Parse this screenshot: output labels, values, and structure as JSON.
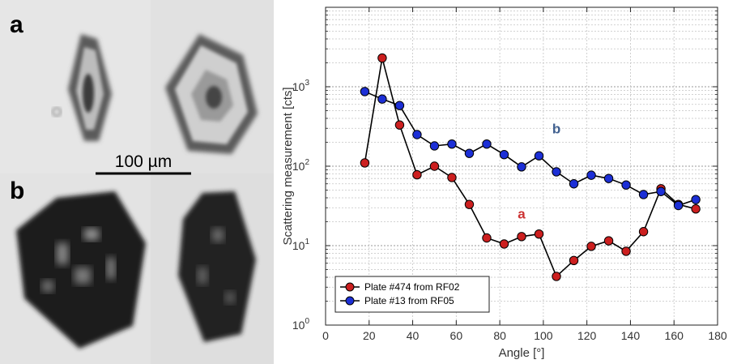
{
  "micrograph": {
    "panel_a_label": "a",
    "panel_b_label": "b",
    "scale_bar_label": "100 µm"
  },
  "chart_data": {
    "type": "line",
    "xlabel": "Angle  [°]",
    "ylabel": "Scattering measurement [cts]",
    "xlim": [
      0,
      180
    ],
    "ylim": [
      1,
      10000
    ],
    "yscale": "log",
    "grid": true,
    "legend_position": "bottom-left",
    "x_ticks": [
      0,
      20,
      40,
      60,
      80,
      100,
      120,
      140,
      160,
      180
    ],
    "y_ticks": [
      {
        "value": 1,
        "base": "10",
        "exp": "0"
      },
      {
        "value": 10,
        "base": "10",
        "exp": "1"
      },
      {
        "value": 100,
        "base": "10",
        "exp": "2"
      },
      {
        "value": 1000,
        "base": "10",
        "exp": "3"
      }
    ],
    "series": [
      {
        "name": "Plate #474 from RF02",
        "color": "#cc1f1f",
        "annotation": "a",
        "annotation_color": "#cc3333",
        "annotation_at": [
          90,
          22
        ],
        "x": [
          18,
          26,
          34,
          42,
          50,
          58,
          66,
          74,
          82,
          90,
          98,
          106,
          114,
          122,
          130,
          138,
          146,
          154,
          162,
          170
        ],
        "y": [
          110,
          2300,
          330,
          78,
          100,
          72,
          33,
          12.5,
          10.5,
          13,
          14,
          4.1,
          6.5,
          9.8,
          11.5,
          8.5,
          15,
          52,
          33,
          29
        ]
      },
      {
        "name": "Plate #13 from RF05",
        "color": "#1c2fd6",
        "annotation": "b",
        "annotation_color": "#3f5f8f",
        "annotation_at": [
          106,
          260
        ],
        "x": [
          18,
          26,
          34,
          42,
          50,
          58,
          66,
          74,
          82,
          90,
          98,
          106,
          114,
          122,
          130,
          138,
          146,
          154,
          162,
          170
        ],
        "y": [
          870,
          700,
          580,
          250,
          180,
          190,
          145,
          190,
          140,
          98,
          135,
          85,
          60,
          77,
          70,
          58,
          44,
          48,
          32,
          38
        ]
      }
    ]
  }
}
